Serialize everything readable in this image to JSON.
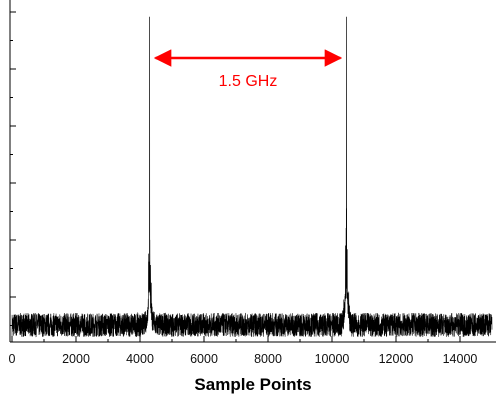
{
  "chart_data": {
    "type": "line",
    "title": "",
    "xlabel": "Sample Points",
    "ylabel": "",
    "xlim": [
      0,
      15000
    ],
    "ylim": [
      0,
      1
    ],
    "x_ticks": [
      "0",
      "2000",
      "4000",
      "6000",
      "8000",
      "10000",
      "12000",
      "14000"
    ],
    "y_tick_labels_shown": false,
    "grid": false,
    "series": [
      {
        "peaks": [
          {
            "x": 4300,
            "y": 0.95
          },
          {
            "x": 10450,
            "y": 0.95
          }
        ],
        "noise_floor_y": 0.05,
        "color": "#000000"
      }
    ],
    "annotations": [
      {
        "text": "1.5 GHz",
        "type": "double-arrow",
        "from_x": 4300,
        "to_x": 10450,
        "color": "#ff0000"
      }
    ]
  }
}
